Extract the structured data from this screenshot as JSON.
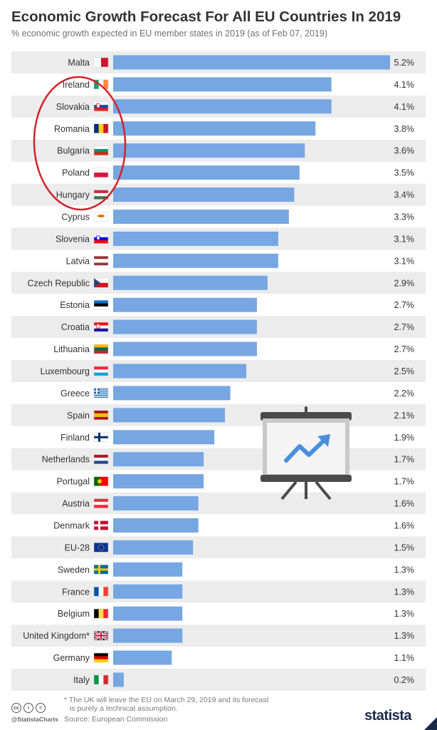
{
  "header": {
    "title": "Economic Growth Forecast For All EU Countries In 2019",
    "subtitle": "% economic growth expected in EU member states in 2019 (as of Feb 07, 2019)"
  },
  "footer": {
    "note_line1": "* The UK will leave the EU on March 29, 2019 and its forecast",
    "note_line2": "is purely a technical assumption.",
    "source": "Source: European Commission",
    "handle": "@StatistaCharts",
    "brand": "statista",
    "cc_icons": [
      "cc",
      "i",
      "="
    ]
  },
  "colors": {
    "bar": "#76a7e2",
    "row_stripe": "#ececec",
    "text": "#333333",
    "annotation_circle": "#d2232a"
  },
  "icons": {
    "annotation": "red-circle-highlight",
    "presentation": "presentation-board-trend-up-icon"
  },
  "chart_data": {
    "type": "bar",
    "orientation": "horizontal",
    "title": "Economic Growth Forecast For All EU Countries In 2019",
    "subtitle": "% economic growth expected in EU member states in 2019 (as of Feb 07, 2019)",
    "value_suffix": "%",
    "xlim": [
      0,
      5.2
    ],
    "grid": false,
    "categories": [
      "Malta",
      "Ireland",
      "Slovakia",
      "Romania",
      "Bulgaria",
      "Poland",
      "Hungary",
      "Cyprus",
      "Slovenia",
      "Latvia",
      "Czech Republic",
      "Estonia",
      "Croatia",
      "Lithuania",
      "Luxembourg",
      "Greece",
      "Spain",
      "Finland",
      "Netherlands",
      "Portugal",
      "Austria",
      "Denmark",
      "EU-28",
      "Sweden",
      "France",
      "Belgium",
      "United Kingdom*",
      "Germany",
      "Italy"
    ],
    "values": [
      5.2,
      4.1,
      4.1,
      3.8,
      3.6,
      3.5,
      3.4,
      3.3,
      3.1,
      3.1,
      2.9,
      2.7,
      2.7,
      2.7,
      2.5,
      2.2,
      2.1,
      1.9,
      1.7,
      1.7,
      1.6,
      1.6,
      1.5,
      1.3,
      1.3,
      1.3,
      1.3,
      1.1,
      0.2
    ],
    "labels": [
      "5.2%",
      "4.1%",
      "4.1%",
      "3.8%",
      "3.6%",
      "3.5%",
      "3.4%",
      "3.3%",
      "3.1%",
      "3.1%",
      "2.9%",
      "2.7%",
      "2.7%",
      "2.7%",
      "2.5%",
      "2.2%",
      "2.1%",
      "1.9%",
      "1.7%",
      "1.7%",
      "1.6%",
      "1.6%",
      "1.5%",
      "1.3%",
      "1.3%",
      "1.3%",
      "1.3%",
      "1.1%",
      "0.2%"
    ],
    "flags": [
      {
        "type": "v",
        "colors": [
          "#ffffff",
          "#cf142b"
        ]
      },
      {
        "type": "v",
        "colors": [
          "#169b62",
          "#ffffff",
          "#ff883e"
        ]
      },
      {
        "type": "h",
        "colors": [
          "#ffffff",
          "#0b4ea2",
          "#ee1c25"
        ],
        "mark": "#ee1c25"
      },
      {
        "type": "v",
        "colors": [
          "#002b7f",
          "#fcd116",
          "#ce1126"
        ]
      },
      {
        "type": "h",
        "colors": [
          "#ffffff",
          "#00966e",
          "#d62612"
        ]
      },
      {
        "type": "h",
        "colors": [
          "#ffffff",
          "#dc143c"
        ]
      },
      {
        "type": "h",
        "colors": [
          "#cd2a3e",
          "#ffffff",
          "#436f4d"
        ]
      },
      {
        "type": "plain",
        "colors": [
          "#ffffff"
        ],
        "mark": "#d57800"
      },
      {
        "type": "h",
        "colors": [
          "#ffffff",
          "#0000ff",
          "#ff0000"
        ],
        "mark": "#0000ff"
      },
      {
        "type": "h3",
        "colors": [
          "#9e3039",
          "#ffffff",
          "#9e3039"
        ]
      },
      {
        "type": "h",
        "colors": [
          "#ffffff",
          "#d7141a"
        ],
        "mark": "#11457e"
      },
      {
        "type": "h",
        "colors": [
          "#0072ce",
          "#000000",
          "#ffffff"
        ]
      },
      {
        "type": "h",
        "colors": [
          "#ff0000",
          "#ffffff",
          "#171796"
        ],
        "mark": "#ff0000"
      },
      {
        "type": "h",
        "colors": [
          "#fdb913",
          "#006a44",
          "#c1272d"
        ]
      },
      {
        "type": "h",
        "colors": [
          "#ed2939",
          "#ffffff",
          "#00a1de"
        ]
      },
      {
        "type": "stripes",
        "colors": [
          "#0d5eaf",
          "#ffffff"
        ]
      },
      {
        "type": "h3",
        "colors": [
          "#aa151b",
          "#f1bf00",
          "#aa151b"
        ]
      },
      {
        "type": "nordic",
        "colors": [
          "#ffffff",
          "#002f6c"
        ]
      },
      {
        "type": "h",
        "colors": [
          "#ae1c28",
          "#ffffff",
          "#21468b"
        ]
      },
      {
        "type": "v2",
        "colors": [
          "#006600",
          "#ff0000"
        ],
        "mark": "#ffcc00"
      },
      {
        "type": "h",
        "colors": [
          "#ed2939",
          "#ffffff",
          "#ed2939"
        ]
      },
      {
        "type": "nordic",
        "colors": [
          "#c60c30",
          "#ffffff"
        ]
      },
      {
        "type": "plain",
        "colors": [
          "#003399"
        ],
        "mark": "#ffcc00"
      },
      {
        "type": "nordic",
        "colors": [
          "#006aa7",
          "#fecc00"
        ]
      },
      {
        "type": "v",
        "colors": [
          "#0055a4",
          "#ffffff",
          "#ef4135"
        ]
      },
      {
        "type": "v",
        "colors": [
          "#000000",
          "#fae042",
          "#ed2939"
        ]
      },
      {
        "type": "uk",
        "colors": [
          "#012169",
          "#ffffff",
          "#c8102e"
        ]
      },
      {
        "type": "h",
        "colors": [
          "#000000",
          "#dd0000",
          "#ffce00"
        ]
      },
      {
        "type": "v",
        "colors": [
          "#009246",
          "#ffffff",
          "#ce2b37"
        ]
      }
    ]
  }
}
